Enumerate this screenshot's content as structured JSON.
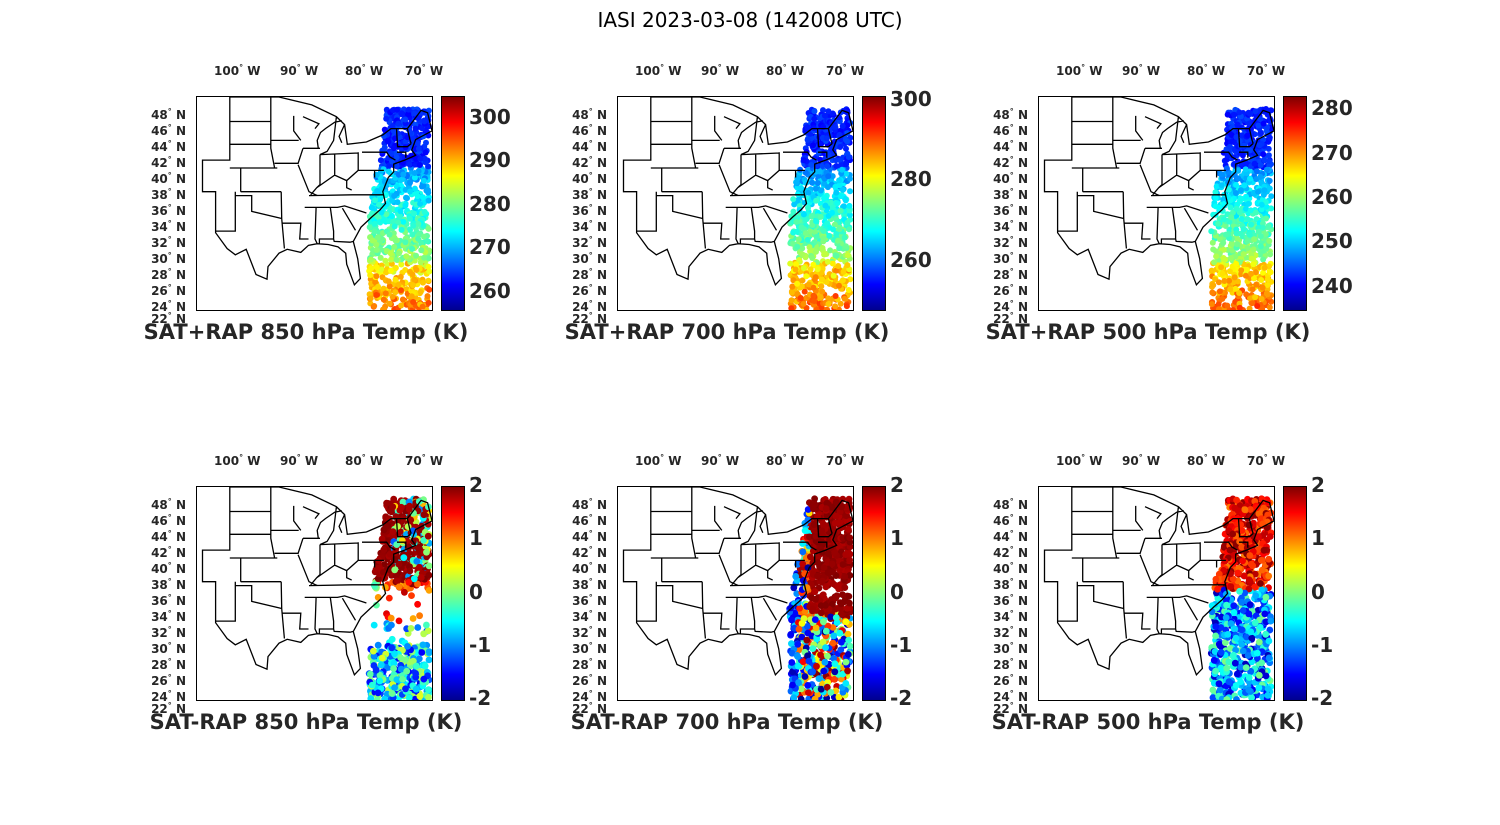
{
  "figure_title": "IASI 2023-03-08 (142008 UTC)",
  "lon_labels": [
    {
      "deg": "100",
      "hem": "W"
    },
    {
      "deg": "90",
      "hem": "W"
    },
    {
      "deg": "80",
      "hem": "W"
    },
    {
      "deg": "70",
      "hem": "W"
    }
  ],
  "lat_labels": [
    "48",
    "46",
    "44",
    "42",
    "40",
    "38",
    "36",
    "34",
    "32",
    "30",
    "28",
    "26",
    "24",
    "22"
  ],
  "lat_hem": "N",
  "colormap": "jet",
  "panels": [
    {
      "title": "SAT+RAP 850 hPa Temp (K)",
      "cbar_ticks": [
        "300",
        "290",
        "280",
        "270",
        "260"
      ],
      "cbar_range": [
        256,
        305
      ],
      "field": "sat_850"
    },
    {
      "title": "SAT+RAP 700 hPa Temp (K)",
      "cbar_ticks": [
        "300",
        "280",
        "260"
      ],
      "cbar_range": [
        248,
        301
      ],
      "field": "sat_700"
    },
    {
      "title": "SAT+RAP 500 hPa Temp (K)",
      "cbar_ticks": [
        "280",
        "270",
        "260",
        "250",
        "240"
      ],
      "cbar_range": [
        235,
        283
      ],
      "field": "sat_500"
    },
    {
      "title": "SAT-RAP 850 hPa Temp (K)",
      "cbar_ticks": [
        "2",
        "1",
        "0",
        "-1",
        "-2"
      ],
      "cbar_range": [
        -2,
        2
      ],
      "field": "diff_850"
    },
    {
      "title": "SAT-RAP 700 hPa Temp (K)",
      "cbar_ticks": [
        "2",
        "1",
        "0",
        "-1",
        "-2"
      ],
      "cbar_range": [
        -2,
        2
      ],
      "field": "diff_700"
    },
    {
      "title": "SAT-RAP 500 hPa Temp (K)",
      "cbar_ticks": [
        "2",
        "1",
        "0",
        "-1",
        "-2"
      ],
      "cbar_range": [
        -2,
        2
      ],
      "field": "diff_500"
    }
  ]
}
